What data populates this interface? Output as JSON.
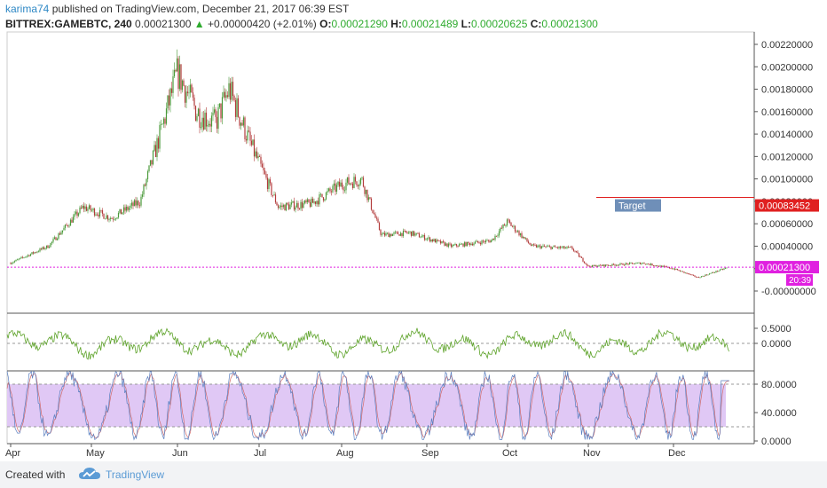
{
  "header": {
    "author": "karima74",
    "published": "published on TradingView.com, December 21, 2017 06:39 EST",
    "symbol": "BITTREX:GAMEBTC, 240",
    "last": "0.00021300",
    "change_arrow": "▲",
    "change": "+0.00000420 (+2.01%)",
    "o_label": "O:",
    "o": "0.00021290",
    "h_label": "H:",
    "h": "0.00021489",
    "l_label": "L:",
    "l": "0.00020625",
    "c_label": "C:",
    "c": "0.00021300"
  },
  "colors": {
    "up": "#2eab2e",
    "target_line": "#e02020",
    "target_box": "#6f8fb8",
    "price_line": "#e020e0",
    "osc_line": "#5ea32a",
    "stoch_band": "#e0c8f5",
    "stoch_k": "#8a6fa8"
  },
  "chart_data": {
    "type": "candlestick",
    "x_ticks": [
      "Apr",
      "May",
      "Jun",
      "Jul",
      "Aug",
      "Sep",
      "Oct",
      "Nov",
      "Dec"
    ],
    "price_ticks": [
      "0.00220000",
      "0.00200000",
      "0.00180000",
      "0.00160000",
      "0.00140000",
      "0.00120000",
      "0.00100000",
      "0.00080000",
      "0.00060000",
      "0.00040000",
      "0.00020000",
      "-0.00000000"
    ],
    "price_ylim": [
      0.0,
      0.0022
    ],
    "trend": [
      [
        "Apr",
        0.00025
      ],
      [
        "Apr 15",
        0.0004
      ],
      [
        "Apr 28",
        0.00075
      ],
      [
        "May 8",
        0.00065
      ],
      [
        "May 18",
        0.0008
      ],
      [
        "May 25",
        0.0014
      ],
      [
        "Jun 1",
        0.00195
      ],
      [
        "Jun 8",
        0.0016
      ],
      [
        "Jun 15",
        0.0015
      ],
      [
        "Jun 20",
        0.0018
      ],
      [
        "Jun 28",
        0.0013
      ],
      [
        "Jul 8",
        0.00075
      ],
      [
        "Jul 20",
        0.00078
      ],
      [
        "Aug 1",
        0.00095
      ],
      [
        "Aug 8",
        0.001
      ],
      [
        "Aug 15",
        0.0005
      ],
      [
        "Aug 25",
        0.00052
      ],
      [
        "Sep 10",
        0.0004
      ],
      [
        "Sep 25",
        0.00045
      ],
      [
        "Oct 1",
        0.00062
      ],
      [
        "Oct 10",
        0.0004
      ],
      [
        "Oct 25",
        0.00038
      ],
      [
        "Nov 1",
        0.00022
      ],
      [
        "Nov 20",
        0.00025
      ],
      [
        "Dec 1",
        0.0002
      ],
      [
        "Dec 10",
        0.00012
      ],
      [
        "Dec 21",
        0.00021
      ]
    ],
    "target": {
      "label": "Target",
      "value": 0.00083452,
      "value_label": "0.00083452"
    },
    "last_price": {
      "value": 0.000213,
      "value_label": "0.00021300",
      "countdown": "20:39"
    },
    "oscillator": {
      "ticks": [
        "0.5000",
        "0.0000"
      ],
      "ylim": [
        -0.6,
        0.6
      ],
      "baseline": 0.0
    },
    "stochastic": {
      "ticks": [
        "80.0000",
        "40.0000",
        "0.0000"
      ],
      "ylim": [
        0,
        100
      ],
      "band": [
        20,
        80
      ],
      "last": 85
    }
  },
  "footer": {
    "created_with": "Created with",
    "brand": "TradingView"
  }
}
